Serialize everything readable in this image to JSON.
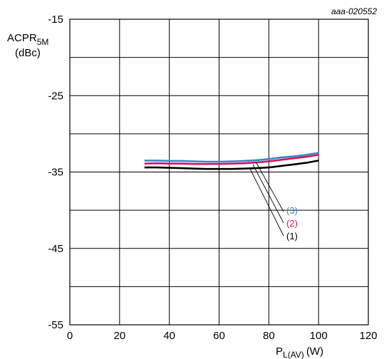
{
  "chart_data": {
    "type": "line",
    "reference": "aaa-020552",
    "ylabel": {
      "main": "ACPR",
      "sub": "5M",
      "unit": "(dBc)"
    },
    "xlabel": {
      "main": "P",
      "sub": "L(AV)",
      "unit": "(W)"
    },
    "xlim": [
      0,
      120
    ],
    "ylim": [
      -55,
      -15
    ],
    "x_ticks": [
      0,
      20,
      40,
      60,
      80,
      100,
      120
    ],
    "y_ticks": [
      -15,
      -25,
      -35,
      -45,
      -55
    ],
    "x_tick_labels": [
      "0",
      "20",
      "40",
      "60",
      "80",
      "100",
      "120"
    ],
    "y_tick_labels": [
      "-15",
      "-25",
      "-35",
      "-45",
      "-55"
    ],
    "x_grid": [
      0,
      20,
      40,
      60,
      80,
      100,
      120
    ],
    "y_grid": [
      -15,
      -20,
      -25,
      -30,
      -35,
      -40,
      -45,
      -50,
      -55
    ],
    "series": [
      {
        "name": "(1)",
        "color": "#000000",
        "x": [
          30,
          35,
          40,
          45,
          50,
          55,
          60,
          65,
          70,
          75,
          80,
          85,
          90,
          95,
          100
        ],
        "y": [
          -34.4,
          -34.4,
          -34.45,
          -34.5,
          -34.55,
          -34.6,
          -34.6,
          -34.6,
          -34.55,
          -34.5,
          -34.4,
          -34.2,
          -34.0,
          -33.8,
          -33.5
        ]
      },
      {
        "name": "(2)",
        "color": "#d4145a",
        "x": [
          30,
          35,
          40,
          45,
          50,
          55,
          60,
          65,
          70,
          75,
          80,
          85,
          90,
          95,
          100
        ],
        "y": [
          -33.9,
          -33.85,
          -33.9,
          -33.9,
          -33.95,
          -33.95,
          -33.95,
          -33.9,
          -33.85,
          -33.75,
          -33.6,
          -33.4,
          -33.2,
          -33.0,
          -32.75
        ]
      },
      {
        "name": "(3)",
        "color": "#3a87c8",
        "x": [
          30,
          35,
          40,
          45,
          50,
          55,
          60,
          65,
          70,
          75,
          80,
          85,
          90,
          95,
          100
        ],
        "y": [
          -33.5,
          -33.5,
          -33.55,
          -33.55,
          -33.6,
          -33.65,
          -33.65,
          -33.6,
          -33.55,
          -33.45,
          -33.3,
          -33.1,
          -32.95,
          -32.75,
          -32.5
        ]
      }
    ]
  }
}
